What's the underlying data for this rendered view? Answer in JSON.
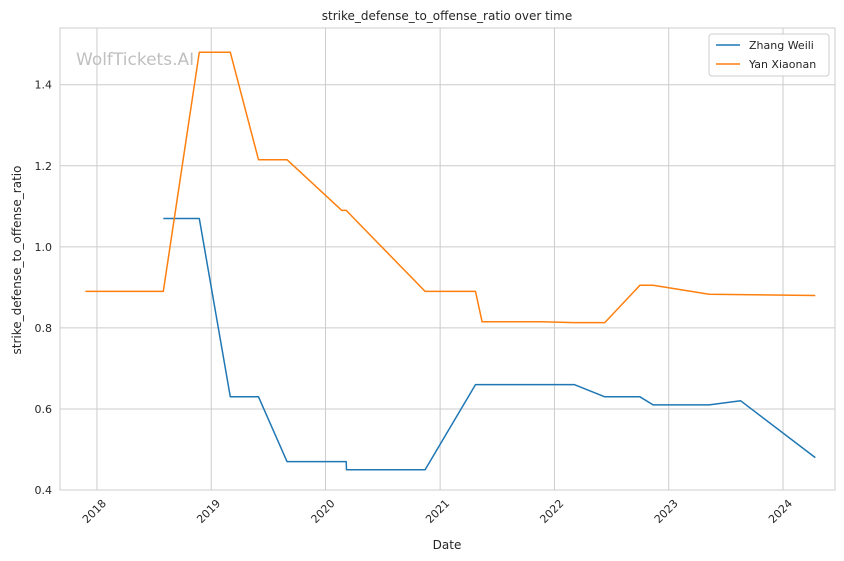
{
  "chart_data": {
    "type": "line",
    "title": "strike_defense_to_offense_ratio over time",
    "xlabel": "Date",
    "ylabel": "strike_defense_to_offense_ratio",
    "watermark": "WolfTickets.AI",
    "ylim": [
      0.4,
      1.54
    ],
    "xlim": [
      "2017-09-05",
      "2024-06-15"
    ],
    "yticks": [
      0.4,
      0.6,
      0.8,
      1.0,
      1.2,
      1.4
    ],
    "ytick_labels": [
      "0.4",
      "0.6",
      "0.8",
      "1.0",
      "1.2",
      "1.4"
    ],
    "xticks": [
      "2018-01-01",
      "2019-01-01",
      "2020-01-01",
      "2021-01-01",
      "2022-01-01",
      "2023-01-01",
      "2024-01-01"
    ],
    "xtick_labels": [
      "2018",
      "2019",
      "2020",
      "2021",
      "2022",
      "2023",
      "2024"
    ],
    "grid": true,
    "legend_position": "top-right",
    "series": [
      {
        "name": "Zhang Weili",
        "color": "#1f77b4",
        "x": [
          "2018-08-01",
          "2018-11-24",
          "2019-03-03",
          "2019-06-01",
          "2019-08-31",
          "2020-03-07",
          "2020-03-08",
          "2020-11-14",
          "2021-04-24",
          "2022-03-05",
          "2022-06-11",
          "2022-10-01",
          "2022-11-12",
          "2023-05-10",
          "2023-08-19",
          "2024-04-13"
        ],
        "y": [
          1.07,
          1.07,
          0.63,
          0.63,
          0.47,
          0.47,
          0.45,
          0.45,
          0.66,
          0.66,
          0.63,
          0.63,
          0.61,
          0.61,
          0.62,
          0.48
        ]
      },
      {
        "name": "Yan Xiaonan",
        "color": "#ff7f0e",
        "x": [
          "2017-11-25",
          "2018-08-01",
          "2018-11-24",
          "2019-03-03",
          "2019-06-01",
          "2019-08-31",
          "2020-02-22",
          "2020-03-07",
          "2020-11-14",
          "2021-04-24",
          "2021-05-15",
          "2021-11-20",
          "2022-03-05",
          "2022-06-11",
          "2022-10-01",
          "2022-11-12",
          "2023-05-10",
          "2024-04-13"
        ],
        "y": [
          0.89,
          0.89,
          1.48,
          1.48,
          1.215,
          1.215,
          1.09,
          1.09,
          0.89,
          0.89,
          0.815,
          0.815,
          0.813,
          0.813,
          0.905,
          0.905,
          0.883,
          0.88
        ]
      }
    ]
  }
}
